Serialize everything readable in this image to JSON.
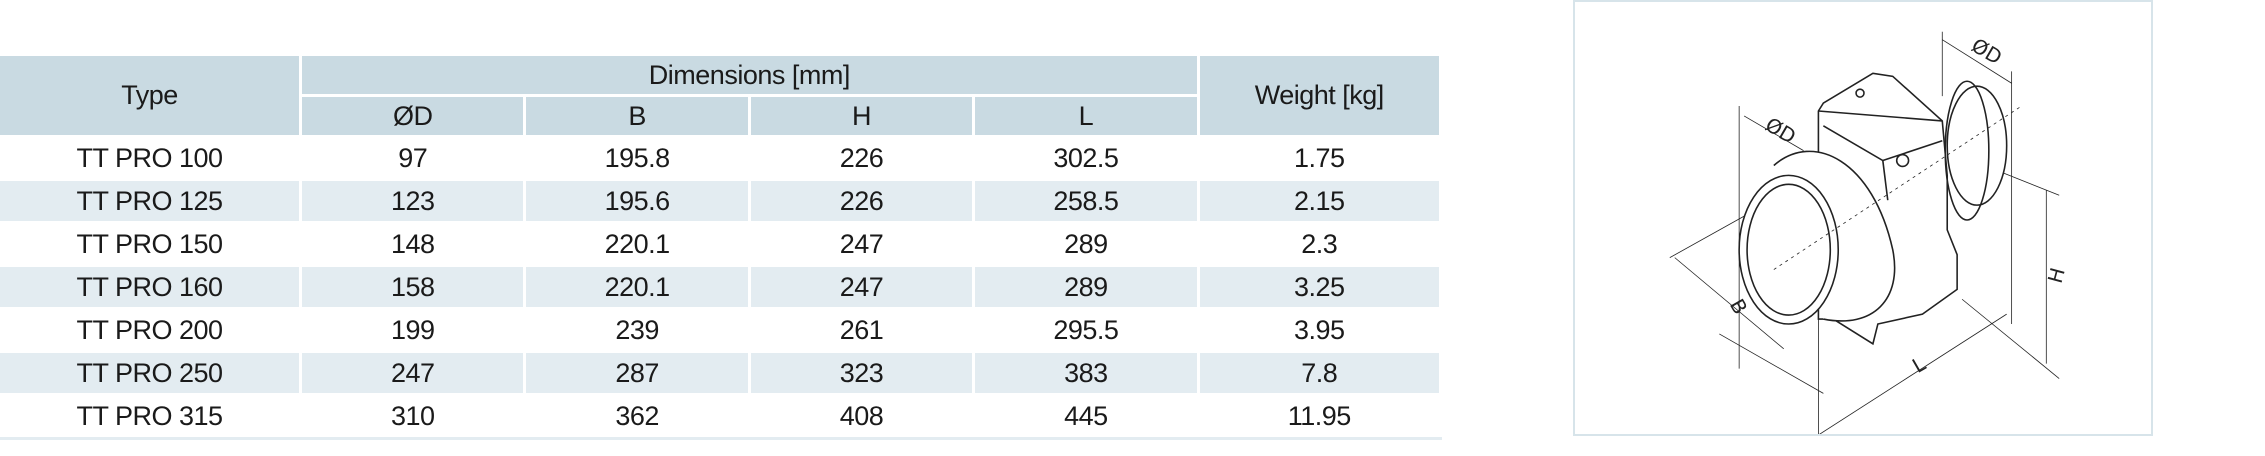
{
  "table": {
    "type_header": "Type",
    "dimensions_header": "Dimensions [mm]",
    "weight_header": "Weight [kg]",
    "sub_headers": [
      "ØD",
      "B",
      "H",
      "L"
    ],
    "rows": [
      {
        "type": "TT PRO 100",
        "d": "97",
        "b": "195.8",
        "h": "226",
        "l": "302.5",
        "weight": "1.75"
      },
      {
        "type": "TT PRO 125",
        "d": "123",
        "b": "195.6",
        "h": "226",
        "l": "258.5",
        "weight": "2.15"
      },
      {
        "type": "TT PRO 150",
        "d": "148",
        "b": "220.1",
        "h": "247",
        "l": "289",
        "weight": "2.3"
      },
      {
        "type": "TT PRO 160",
        "d": "158",
        "b": "220.1",
        "h": "247",
        "l": "289",
        "weight": "3.25"
      },
      {
        "type": "TT PRO 200",
        "d": "199",
        "b": "239",
        "h": "261",
        "l": "295.5",
        "weight": "3.95"
      },
      {
        "type": "TT PRO 250",
        "d": "247",
        "b": "287",
        "h": "323",
        "l": "383",
        "weight": "7.8"
      },
      {
        "type": "TT PRO 315",
        "d": "310",
        "b": "362",
        "h": "408",
        "l": "445",
        "weight": "11.95"
      }
    ]
  },
  "drawing": {
    "labels": {
      "d_front": "ØD",
      "d_back": "ØD",
      "b": "B",
      "h": "H",
      "l": "L"
    }
  },
  "colors": {
    "header_bg": "#c9dae2",
    "alt_row_bg": "#e3ecf1",
    "frame": "#d7e4ea"
  }
}
